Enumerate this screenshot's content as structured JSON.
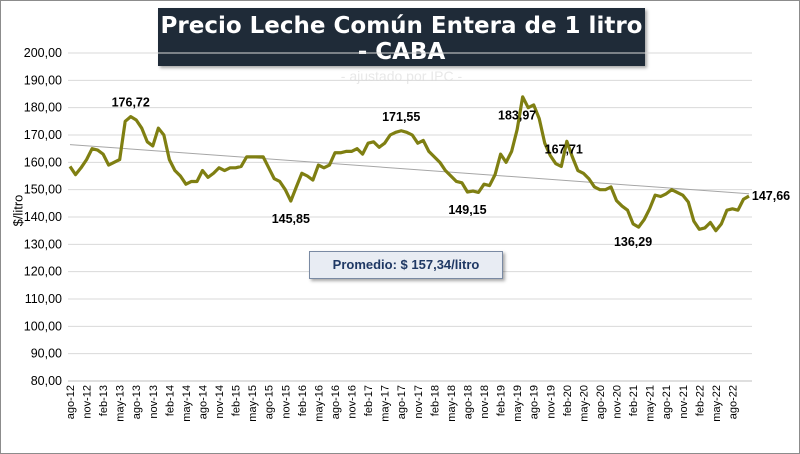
{
  "header": {
    "title": "Precio Leche Común Entera de 1 litro - CABA",
    "subtitle": "- ajustado por IPC -"
  },
  "average_box": {
    "text": "Promedio: $ 157,34/litro"
  },
  "colors": {
    "series": "#7f7f12",
    "trend": "#a6a6a6",
    "grid": "#d9d9d9",
    "title_bg": "#1f2b38"
  },
  "chart_data": {
    "type": "line",
    "title": "Precio Leche Común Entera de 1 litro - CABA",
    "subtitle": "- ajustado por IPC -",
    "ylabel": "$/litro",
    "xlabel": "",
    "ylim": [
      80,
      200
    ],
    "yticks": [
      "80,00",
      "90,00",
      "100,00",
      "110,00",
      "120,00",
      "130,00",
      "140,00",
      "150,00",
      "160,00",
      "170,00",
      "180,00",
      "190,00",
      "200,00"
    ],
    "grid": true,
    "x_tick_labels": [
      "ago-12",
      "nov-12",
      "feb-13",
      "may-13",
      "ago-13",
      "nov-13",
      "feb-14",
      "may-14",
      "ago-14",
      "nov-14",
      "feb-15",
      "may-15",
      "ago-15",
      "nov-15",
      "feb-16",
      "may-16",
      "ago-16",
      "nov-16",
      "feb-17",
      "may-17",
      "ago-17",
      "nov-17",
      "feb-18",
      "may-18",
      "ago-18",
      "nov-18",
      "feb-19",
      "may-19",
      "ago-19",
      "nov-19",
      "feb-20",
      "may-20",
      "ago-20",
      "nov-20",
      "feb-21",
      "may-21",
      "ago-21",
      "nov-21",
      "feb-22",
      "may-22",
      "ago-22"
    ],
    "series": [
      {
        "values": [
          158.5,
          155.5,
          158,
          161,
          165,
          164.5,
          163,
          159,
          160,
          161,
          175,
          176.72,
          175.5,
          172.5,
          167.5,
          166,
          172.5,
          170,
          161,
          157,
          155,
          152,
          153,
          153,
          157,
          154.5,
          156,
          158,
          157,
          158,
          158,
          158.5,
          162,
          162,
          162,
          162,
          158,
          154,
          153,
          150,
          145.85,
          151,
          156,
          155,
          153.5,
          159,
          158,
          159,
          163.5,
          163.5,
          164,
          164,
          165,
          163,
          167,
          167.5,
          165.5,
          167,
          170,
          171,
          171.55,
          171,
          170,
          167,
          168,
          164,
          162,
          160,
          157,
          155,
          153,
          152.5,
          149.15,
          149.5,
          149,
          152,
          151.5,
          155.5,
          163,
          160,
          164,
          172,
          183.97,
          180,
          181,
          176,
          167,
          162.5,
          159.5,
          158.5,
          167.71,
          162,
          157,
          156,
          154,
          151,
          150,
          150,
          151,
          146,
          144,
          142.5,
          137.5,
          136.29,
          139,
          143,
          148,
          147.5,
          148.5,
          150,
          149,
          148,
          145.5,
          138.5,
          135.5,
          136,
          138,
          135,
          137.5,
          142.5,
          143,
          142.5,
          146.5,
          147.66
        ]
      }
    ],
    "trendline": {
      "start": 166.5,
      "end": 148.5
    },
    "annotations": [
      "176,72",
      "145,85",
      "171,55",
      "149,15",
      "183,97",
      "167,71",
      "136,29",
      "147,66"
    ],
    "average": "Promedio: $ 157,34/litro"
  }
}
